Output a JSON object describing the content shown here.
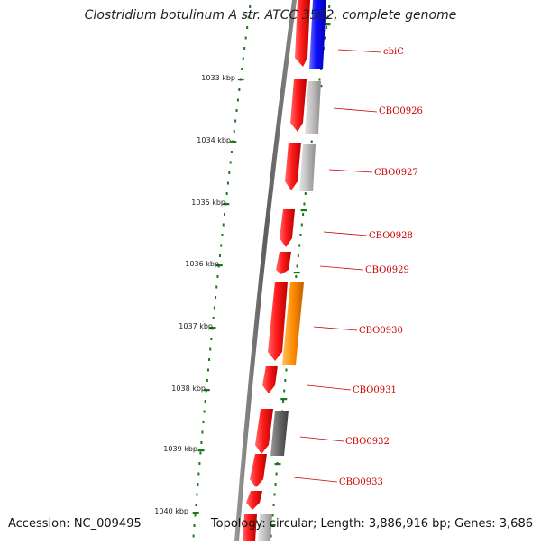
{
  "title": "Clostridium botulinum A str. ATCC 3502, complete genome",
  "footer": {
    "accession": "Accession: NC_009495",
    "topology": "Topology: circular; Length: 3,886,916 bp; Genes: 3,686"
  },
  "colors": {
    "forward_gene": "#ee0000",
    "backbone": "#777777",
    "tick": "#1a7a1a",
    "label": "#cc0000"
  },
  "scale_ticks": [
    "1033 kbp",
    "1034 kbp",
    "1035 kbp",
    "1036 kbp",
    "1037 kbp",
    "1038 kbp",
    "1039 kbp",
    "1040 kbp"
  ],
  "gene_labels": [
    "cbiC",
    "CBO0926",
    "CBO0927",
    "CBO0928",
    "CBO0929",
    "CBO0930",
    "CBO0931",
    "CBO0932",
    "CBO0933"
  ]
}
